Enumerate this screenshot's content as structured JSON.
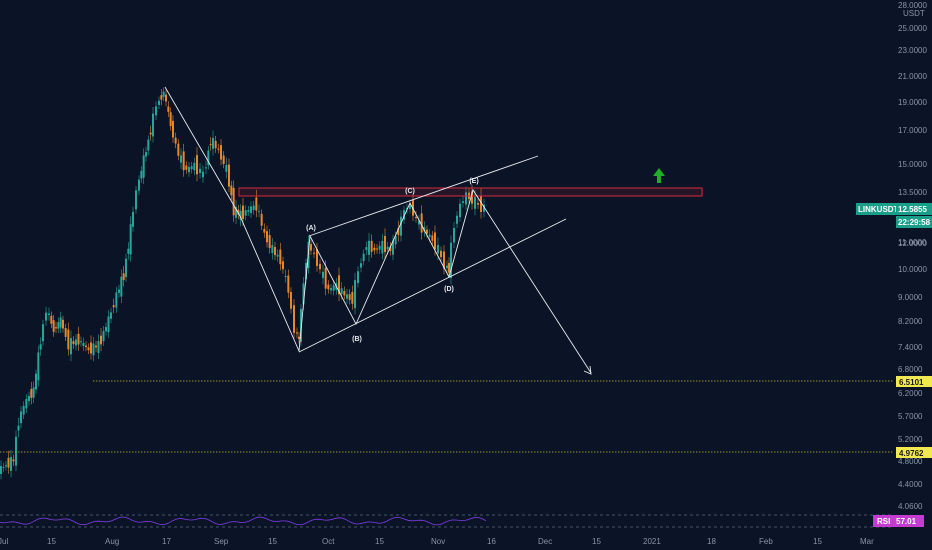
{
  "symbol": "LINKUSDT",
  "currency": "USDT",
  "price_badge": {
    "value": "12.5855",
    "timer": "22:29:58",
    "color": "#1a9e8a"
  },
  "level_badges": [
    {
      "label": "6.5101",
      "price": 6.5101,
      "color": "#f2e94e"
    },
    {
      "label": "4.9762",
      "price": 4.9762,
      "color": "#f2e94e"
    }
  ],
  "rsi": {
    "label": "RSI",
    "value": "57.01",
    "color": "#c33bd1"
  },
  "price_axis_labels": [
    "28.0000",
    "25.0000",
    "23.0000",
    "21.0000",
    "19.0000",
    "17.0000",
    "15.0000",
    "13.5000",
    "12.0000",
    "11.0000",
    "10.0000",
    "9.0000",
    "8.2000",
    "7.4000",
    "6.8000",
    "6.2000",
    "5.7000",
    "5.2000",
    "4.8000",
    "4.4000",
    "4.0600"
  ],
  "time_axis_labels": [
    "Jul",
    "15",
    "Aug",
    "17",
    "Sep",
    "15",
    "Oct",
    "15",
    "Nov",
    "16",
    "Dec",
    "15",
    "2021",
    "18",
    "Feb",
    "15",
    "Mar"
  ],
  "wave_labels": [
    "(A)",
    "(B)",
    "(C)",
    "(D)",
    "(E)"
  ],
  "colors": {
    "background": "#0b1426",
    "bull": "#26a69a",
    "bear": "#e8872a",
    "wave": "#e8ecf2",
    "resistance": "#d62a3c",
    "target_line": "#c8b830",
    "arrow_up": "#1fae26",
    "rsi_line": "#7e3ee6"
  }
}
